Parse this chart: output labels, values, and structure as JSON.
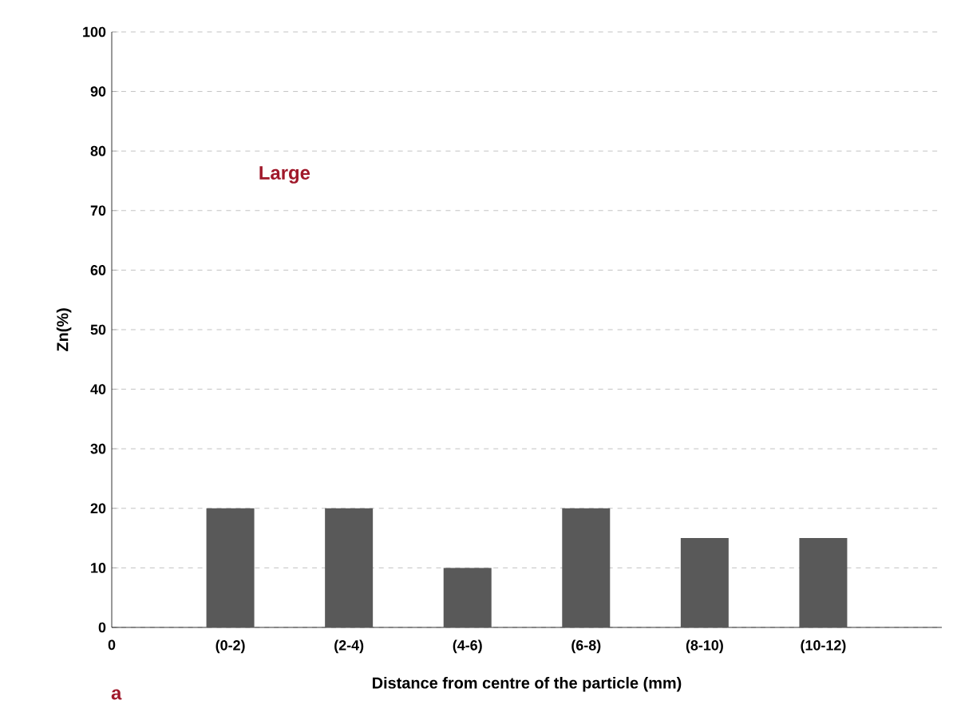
{
  "chart_data": {
    "type": "bar",
    "xlabel": "Distance from centre of the particle (mm)",
    "ylabel": "Zn(%)",
    "categories": [
      "0",
      "(0-2)",
      "(2-4)",
      "(4-6)",
      "(6-8)",
      "(8-10)",
      "(10-12)",
      null
    ],
    "values": [
      null,
      20,
      20,
      10,
      20,
      15,
      15,
      null
    ],
    "color": "#595959",
    "ylim": [
      0,
      100
    ],
    "yticks": [
      0,
      10,
      20,
      30,
      40,
      50,
      60,
      70,
      80,
      90,
      100
    ],
    "grid": "y",
    "annotations": [
      "Large",
      "a"
    ]
  }
}
